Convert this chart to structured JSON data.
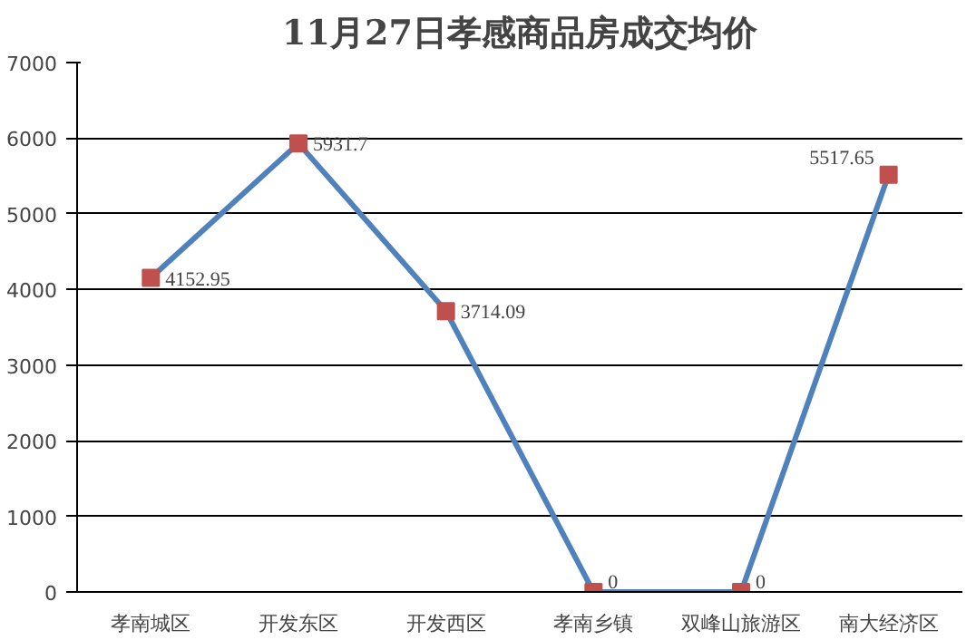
{
  "chart_data": {
    "type": "line",
    "title": "11月27日孝感商品房成交均价",
    "categories": [
      "孝南城区",
      "开发东区",
      "开发西区",
      "孝南乡镇",
      "双峰山旅游区",
      "南大经济区"
    ],
    "series": [
      {
        "color": "#4f81bd",
        "values": [
          4152.95,
          5931.7,
          3714.09,
          0,
          0,
          5517.65
        ]
      }
    ],
    "ylim": [
      0,
      7000
    ],
    "yticks": [
      0,
      1000,
      2000,
      3000,
      4000,
      5000,
      6000,
      7000
    ],
    "grid": "y",
    "marker": "square",
    "data_labels": true,
    "line_style": "solid"
  }
}
